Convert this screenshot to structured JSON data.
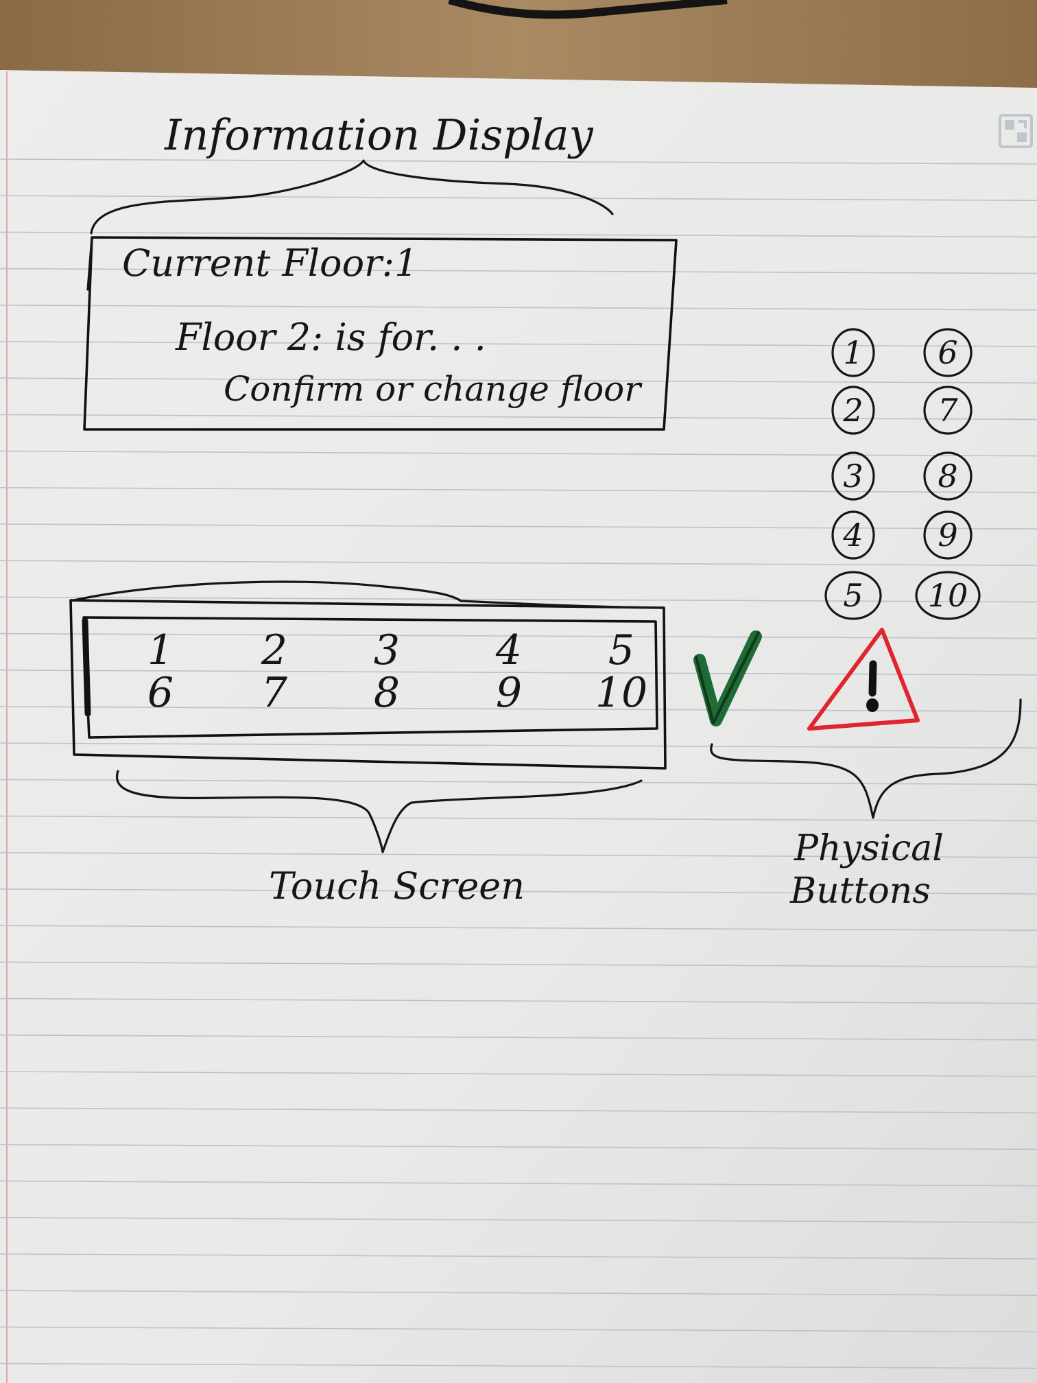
{
  "info_display": {
    "title": "Information Display",
    "current_floor_line": "Current Floor:1",
    "message_line": "Floor 2: is for. . .",
    "prompt_line": "Confirm or change floor"
  },
  "touch_screen": {
    "label": "Touch Screen",
    "row1": [
      "1",
      "2",
      "3",
      "4",
      "5"
    ],
    "row2": [
      "6",
      "7",
      "8",
      "9",
      "10"
    ]
  },
  "physical_buttons": {
    "label_line1": "Physical",
    "label_line2": "Buttons",
    "left_column": [
      "1",
      "2",
      "3",
      "4",
      "5"
    ],
    "right_column": [
      "6",
      "7",
      "8",
      "9",
      "10"
    ],
    "confirm_icon": "check-mark-icon",
    "alert_icon": "warning-triangle-icon",
    "colors": {
      "check": "#1f6b35",
      "warning": "#e0252e",
      "ink": "#161616"
    }
  },
  "corner_icon": "qr-scan-icon"
}
